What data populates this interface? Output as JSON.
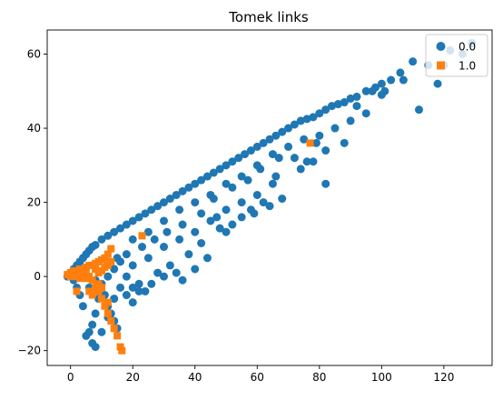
{
  "chart_data": {
    "type": "scatter",
    "title": "Tomek links",
    "xlabel": "",
    "ylabel": "",
    "xlim": [
      -7.5,
      135.5
    ],
    "ylim": [
      -24,
      66.5
    ],
    "xticks": [
      0,
      20,
      40,
      60,
      80,
      100,
      120
    ],
    "yticks": [
      -20,
      0,
      20,
      40,
      60
    ],
    "grid": false,
    "legend_position": "top-right",
    "series": [
      {
        "name": "0.0",
        "marker": "circle",
        "color": "#1f77b4",
        "points": [
          [
            -1,
            0
          ],
          [
            0,
            1
          ],
          [
            1,
            2
          ],
          [
            2,
            3
          ],
          [
            3,
            4
          ],
          [
            4,
            5
          ],
          [
            5,
            6
          ],
          [
            6,
            7
          ],
          [
            7,
            8
          ],
          [
            8,
            8.5
          ],
          [
            10,
            10
          ],
          [
            12,
            11
          ],
          [
            14,
            12
          ],
          [
            16,
            13
          ],
          [
            18,
            14
          ],
          [
            20,
            15
          ],
          [
            22,
            16
          ],
          [
            24,
            17
          ],
          [
            26,
            18
          ],
          [
            28,
            19
          ],
          [
            30,
            20
          ],
          [
            32,
            21
          ],
          [
            34,
            22
          ],
          [
            36,
            23
          ],
          [
            38,
            24
          ],
          [
            40,
            25
          ],
          [
            42,
            26
          ],
          [
            44,
            27
          ],
          [
            46,
            28
          ],
          [
            48,
            29
          ],
          [
            50,
            30
          ],
          [
            52,
            31
          ],
          [
            54,
            32
          ],
          [
            56,
            33
          ],
          [
            58,
            34
          ],
          [
            60,
            35
          ],
          [
            62,
            36
          ],
          [
            64,
            37
          ],
          [
            66,
            38
          ],
          [
            68,
            39
          ],
          [
            70,
            40
          ],
          [
            72,
            41
          ],
          [
            74,
            42
          ],
          [
            76,
            42.5
          ],
          [
            78,
            43
          ],
          [
            80,
            44
          ],
          [
            82,
            45
          ],
          [
            84,
            46
          ],
          [
            86,
            46.5
          ],
          [
            88,
            47
          ],
          [
            90,
            48
          ],
          [
            92,
            48.5
          ],
          [
            95,
            50
          ],
          [
            98,
            51
          ],
          [
            100,
            52
          ],
          [
            103,
            53
          ],
          [
            106,
            55
          ],
          [
            110,
            58
          ],
          [
            115,
            57
          ],
          [
            120,
            57
          ],
          [
            122,
            61
          ],
          [
            126,
            60
          ],
          [
            129,
            63
          ],
          [
            107,
            53
          ],
          [
            101,
            50
          ],
          [
            97,
            50
          ],
          [
            92,
            46
          ],
          [
            100,
            49
          ],
          [
            112,
            45
          ],
          [
            118,
            52
          ],
          [
            20,
            10
          ],
          [
            25,
            12
          ],
          [
            30,
            15
          ],
          [
            35,
            18
          ],
          [
            40,
            20
          ],
          [
            45,
            22
          ],
          [
            50,
            25
          ],
          [
            55,
            27
          ],
          [
            60,
            30
          ],
          [
            65,
            33
          ],
          [
            70,
            35
          ],
          [
            75,
            37
          ],
          [
            80,
            38
          ],
          [
            85,
            40
          ],
          [
            90,
            42
          ],
          [
            95,
            44
          ],
          [
            15,
            5
          ],
          [
            20,
            3
          ],
          [
            25,
            5
          ],
          [
            30,
            8
          ],
          [
            35,
            10
          ],
          [
            40,
            12
          ],
          [
            45,
            15
          ],
          [
            50,
            18
          ],
          [
            55,
            20
          ],
          [
            60,
            22
          ],
          [
            65,
            25
          ],
          [
            28,
            1
          ],
          [
            32,
            3
          ],
          [
            38,
            6
          ],
          [
            42,
            9
          ],
          [
            48,
            13
          ],
          [
            52,
            14
          ],
          [
            58,
            18
          ],
          [
            62,
            20
          ],
          [
            66,
            27
          ],
          [
            72,
            32
          ],
          [
            78,
            31
          ],
          [
            82,
            34
          ],
          [
            88,
            36
          ],
          [
            18,
            0
          ],
          [
            22,
            -2
          ],
          [
            24,
            -4
          ],
          [
            20,
            -3
          ],
          [
            26,
            -2
          ],
          [
            30,
            0
          ],
          [
            34,
            1
          ],
          [
            36,
            -1
          ],
          [
            40,
            2
          ],
          [
            44,
            5
          ],
          [
            47,
            16
          ],
          [
            50,
            12
          ],
          [
            55,
            16
          ],
          [
            59,
            17
          ],
          [
            64,
            19
          ],
          [
            68,
            21
          ],
          [
            82,
            25
          ],
          [
            74,
            29
          ],
          [
            76,
            31
          ],
          [
            79,
            36
          ],
          [
            10,
            -2
          ],
          [
            11,
            -5
          ],
          [
            12,
            -8
          ],
          [
            13,
            -10
          ],
          [
            14,
            -12
          ],
          [
            15,
            -14
          ],
          [
            9,
            -6
          ],
          [
            8,
            -10
          ],
          [
            7,
            -13
          ],
          [
            6,
            -15
          ],
          [
            5,
            -16
          ],
          [
            7,
            -18
          ],
          [
            8,
            -19
          ],
          [
            10,
            -15
          ],
          [
            12,
            -11
          ],
          [
            14,
            -6
          ],
          [
            16,
            -3
          ],
          [
            18,
            -5
          ],
          [
            20,
            -7
          ],
          [
            22,
            -4
          ],
          [
            3,
            -5
          ],
          [
            4,
            -8
          ],
          [
            2,
            -3
          ],
          [
            1,
            -1
          ],
          [
            6,
            -3
          ],
          [
            8,
            -1
          ],
          [
            12,
            0
          ],
          [
            14,
            2
          ],
          [
            16,
            4
          ],
          [
            18,
            6
          ],
          [
            23,
            8
          ],
          [
            27,
            10
          ],
          [
            31,
            12
          ],
          [
            36,
            14
          ],
          [
            42,
            17
          ],
          [
            46,
            21
          ],
          [
            52,
            24
          ],
          [
            57,
            26
          ],
          [
            61,
            29
          ],
          [
            67,
            32
          ]
        ]
      },
      {
        "name": "1.0",
        "marker": "square",
        "color": "#ff7f0e",
        "points": [
          [
            -1,
            0.5
          ],
          [
            0,
            1
          ],
          [
            1,
            1.5
          ],
          [
            2,
            1
          ],
          [
            3,
            2
          ],
          [
            4,
            1.5
          ],
          [
            5,
            2.5
          ],
          [
            6,
            3
          ],
          [
            7,
            3
          ],
          [
            8,
            3.5
          ],
          [
            9,
            4
          ],
          [
            10,
            4.5
          ],
          [
            11,
            5
          ],
          [
            12,
            6
          ],
          [
            13,
            7.5
          ],
          [
            23,
            11
          ],
          [
            2,
            -4
          ],
          [
            6,
            -4
          ],
          [
            7,
            -5
          ],
          [
            8,
            -3
          ],
          [
            9,
            -4
          ],
          [
            10,
            -6
          ],
          [
            11,
            -8
          ],
          [
            12,
            -10
          ],
          [
            13,
            -12
          ],
          [
            14,
            -14
          ],
          [
            15,
            -16
          ],
          [
            16,
            -19
          ],
          [
            16.5,
            -20
          ],
          [
            9,
            1
          ],
          [
            7,
            -1
          ],
          [
            6,
            0
          ],
          [
            5,
            1
          ],
          [
            8,
            2
          ],
          [
            12,
            3
          ],
          [
            13,
            4
          ],
          [
            11,
            2.5
          ],
          [
            10,
            1.5
          ],
          [
            4,
            0
          ],
          [
            3,
            -0.5
          ],
          [
            77,
            36
          ],
          [
            1,
            0
          ],
          [
            2,
            0.5
          ],
          [
            0,
            0
          ],
          [
            5,
            -0.5
          ],
          [
            9,
            -2
          ],
          [
            10,
            -3
          ],
          [
            12,
            -7
          ]
        ]
      }
    ]
  }
}
